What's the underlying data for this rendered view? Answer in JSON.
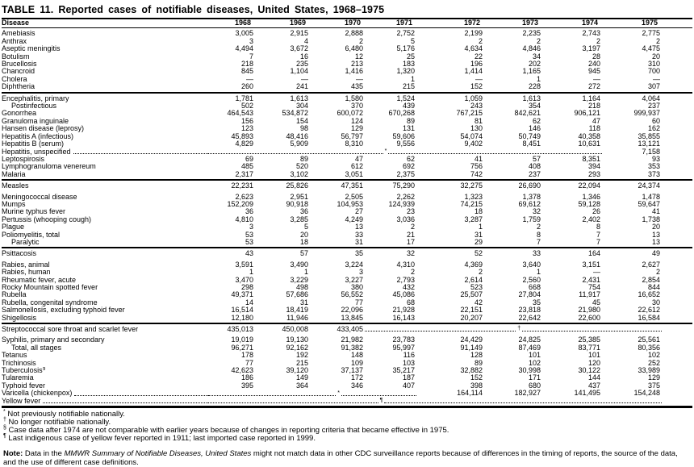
{
  "title": "TABLE 11. Reported cases of notifiable diseases, United States, 1968–1975",
  "table": {
    "columns": [
      "Disease",
      "1968",
      "1969",
      "1970",
      "1971",
      "1972",
      "1973",
      "1974",
      "1975"
    ],
    "sections": [
      {
        "rows": [
          {
            "label": "Amebiasis",
            "values": [
              "3,005",
              "2,915",
              "2,888",
              "2,752",
              "2,199",
              "2,235",
              "2,743",
              "2,775"
            ]
          },
          {
            "label": "Anthrax",
            "values": [
              "3",
              "4",
              "2",
              "5",
              "2",
              "2",
              "2",
              "2"
            ]
          },
          {
            "label": "Aseptic meningitis",
            "values": [
              "4,494",
              "3,672",
              "6,480",
              "5,176",
              "4,634",
              "4,846",
              "3,197",
              "4,475"
            ]
          },
          {
            "label": "Botulism",
            "values": [
              "7",
              "16",
              "12",
              "25",
              "22",
              "34",
              "28",
              "20"
            ]
          },
          {
            "label": "Brucellosis",
            "values": [
              "218",
              "235",
              "213",
              "183",
              "196",
              "202",
              "240",
              "310"
            ]
          },
          {
            "label": "Chancroid",
            "values": [
              "845",
              "1,104",
              "1,416",
              "1,320",
              "1,414",
              "1,165",
              "945",
              "700"
            ]
          },
          {
            "label": "Cholera",
            "values": [
              "—",
              "—",
              "—",
              "1",
              "—",
              "1",
              "—",
              "—"
            ]
          },
          {
            "label": "Diphtheria",
            "values": [
              "260",
              "241",
              "435",
              "215",
              "152",
              "228",
              "272",
              "307"
            ]
          }
        ]
      },
      {
        "rows": [
          {
            "label": "Encephalitis, primary",
            "values": [
              "1,781",
              "1,613",
              "1,580",
              "1,524",
              "1,059",
              "1,613",
              "1,164",
              "4,064"
            ]
          },
          {
            "label": "Postinfectious",
            "indent": true,
            "values": [
              "502",
              "304",
              "370",
              "439",
              "243",
              "354",
              "218",
              "237"
            ]
          },
          {
            "label": "Gonorrhea",
            "values": [
              "464,543",
              "534,872",
              "600,072",
              "670,268",
              "767,215",
              "842,621",
              "906,121",
              "999,937"
            ]
          },
          {
            "label": "Granuloma inguinale",
            "values": [
              "156",
              "154",
              "124",
              "89",
              "81",
              "62",
              "47",
              "60"
            ]
          },
          {
            "label": "Hansen disease (leprosy)",
            "values": [
              "123",
              "98",
              "129",
              "131",
              "130",
              "146",
              "118",
              "162"
            ]
          },
          {
            "label": "Hepatitis A (infectious)",
            "values": [
              "45,893",
              "48,416",
              "56,797",
              "59,606",
              "54,074",
              "50,749",
              "40,358",
              "35,855"
            ]
          },
          {
            "label": "Hepatitis B (serum)",
            "values": [
              "4,829",
              "5,909",
              "8,310",
              "9,556",
              "9,402",
              "8,451",
              "10,631",
              "13,121"
            ]
          },
          {
            "label": "Hepatitis, unspecified",
            "label_dots": true,
            "values": [
              {
                "leader": 7,
                "marker": "*",
                "pos": 45
              },
              "7,158"
            ]
          },
          {
            "label": "Leptospirosis",
            "values": [
              "69",
              "89",
              "47",
              "62",
              "41",
              "57",
              "8,351",
              "93"
            ]
          },
          {
            "label": "Lymphogranuloma venereum",
            "values": [
              "485",
              "520",
              "612",
              "692",
              "756",
              "408",
              "394",
              "353"
            ]
          },
          {
            "label": "Malaria",
            "values": [
              "2,317",
              "3,102",
              "3,051",
              "2,375",
              "742",
              "237",
              "293",
              "373"
            ]
          }
        ]
      },
      {
        "rows": [
          {
            "label": "Measles",
            "gap_after": true,
            "values": [
              "22,231",
              "25,826",
              "47,351",
              "75,290",
              "32,275",
              "26,690",
              "22,094",
              "24,374"
            ]
          },
          {
            "label": "Meningococcal disease",
            "values": [
              "2,623",
              "2,951",
              "2,505",
              "2,262",
              "1,323",
              "1,378",
              "1,346",
              "1,478"
            ]
          },
          {
            "label": "Mumps",
            "values": [
              "152,209",
              "90,918",
              "104,953",
              "124,939",
              "74,215",
              "69,612",
              "59,128",
              "59,647"
            ]
          },
          {
            "label": "Murine typhus fever",
            "values": [
              "36",
              "36",
              "27",
              "23",
              "18",
              "32",
              "26",
              "41"
            ]
          },
          {
            "label": "Pertussis (whooping cough)",
            "values": [
              "4,810",
              "3,285",
              "4,249",
              "3,036",
              "3,287",
              "1,759",
              "2,402",
              "1,738"
            ]
          },
          {
            "label": "Plague",
            "values": [
              "3",
              "5",
              "13",
              "2",
              "1",
              "2",
              "8",
              "20"
            ]
          },
          {
            "label": "Poliomyelitis, total",
            "values": [
              "53",
              "20",
              "33",
              "21",
              "31",
              "8",
              "7",
              "13"
            ]
          },
          {
            "label": "Paralytic",
            "indent": true,
            "values": [
              "53",
              "18",
              "31",
              "17",
              "29",
              "7",
              "7",
              "13"
            ]
          }
        ]
      },
      {
        "rows": [
          {
            "label": "Psittacosis",
            "gap_after": true,
            "values": [
              "43",
              "57",
              "35",
              "32",
              "52",
              "33",
              "164",
              "49"
            ]
          },
          {
            "label": "Rabies, animal",
            "values": [
              "3,591",
              "3,490",
              "3,224",
              "4,310",
              "4,369",
              "3,640",
              "3,151",
              "2,627"
            ]
          },
          {
            "label": "Rabies, human",
            "values": [
              "1",
              "1",
              "3",
              "2",
              "2",
              "1",
              "—",
              "2"
            ]
          },
          {
            "label": "Rheumatic fever, acute",
            "values": [
              "3,470",
              "3,229",
              "3,227",
              "2,793",
              "2,614",
              "2,560",
              "2,431",
              "2,854"
            ]
          },
          {
            "label": "Rocky Mountain spotted fever",
            "values": [
              "298",
              "498",
              "380",
              "432",
              "523",
              "668",
              "754",
              "844"
            ]
          },
          {
            "label": "Rubella",
            "values": [
              "49,371",
              "57,686",
              "56,552",
              "45,086",
              "25,507",
              "27,804",
              "11,917",
              "16,652"
            ]
          },
          {
            "label": "Rubella, congenital syndrome",
            "values": [
              "14",
              "31",
              "77",
              "68",
              "42",
              "35",
              "45",
              "30"
            ]
          },
          {
            "label": "Salmonellosis, excluding typhoid fever",
            "values": [
              "16,514",
              "18,419",
              "22,096",
              "21,928",
              "22,151",
              "23,818",
              "21,980",
              "22,612"
            ]
          },
          {
            "label": "Shigellosis",
            "values": [
              "12,180",
              "11,946",
              "13,845",
              "16,143",
              "20,207",
              "22,642",
              "22,600",
              "16,584"
            ]
          }
        ]
      },
      {
        "rows": [
          {
            "label": "Streptococcal sore throat and scarlet fever",
            "gap_after": true,
            "values": [
              "435,013",
              "450,008",
              "433,405",
              {
                "leader": 5,
                "marker": "†",
                "pos": 52
              }
            ]
          },
          {
            "label": "Syphilis, primary and secondary",
            "values": [
              "19,019",
              "19,130",
              "21,982",
              "23,783",
              "24,429",
              "24,825",
              "25,385",
              "25,561"
            ]
          },
          {
            "label": "Total, all stages",
            "indent": true,
            "values": [
              "96,271",
              "92,162",
              "91,382",
              "95,997",
              "91,149",
              "87,469",
              "83,771",
              "80,356"
            ]
          },
          {
            "label": "Tetanus",
            "values": [
              "178",
              "192",
              "148",
              "116",
              "128",
              "101",
              "101",
              "102"
            ]
          },
          {
            "label": "Trichinosis",
            "values": [
              "77",
              "215",
              "109",
              "103",
              "89",
              "102",
              "120",
              "252"
            ]
          },
          {
            "label": "Tuberculosis",
            "sup": "§",
            "values": [
              "42,623",
              "39,120",
              "37,137",
              "35,217",
              "32,882",
              "30,998",
              "30,122",
              "33,989"
            ]
          },
          {
            "label": "Tularemia",
            "values": [
              "186",
              "149",
              "172",
              "187",
              "152",
              "171",
              "144",
              "129"
            ]
          },
          {
            "label": "Typhoid fever",
            "values": [
              "395",
              "364",
              "346",
              "407",
              "398",
              "680",
              "437",
              "375"
            ]
          },
          {
            "label": "Varicella (chickenpox)",
            "label_dots": true,
            "values": [
              {
                "leader": 4,
                "marker": "*",
                "pos": 63
              },
              "164,114",
              "182,927",
              "141,495",
              "154,248"
            ]
          },
          {
            "label": "Yellow fever",
            "label_dots": true,
            "values": [
              {
                "leader": 8,
                "marker": "¶",
                "pos": 38
              }
            ]
          }
        ]
      }
    ]
  },
  "footnotes": [
    {
      "marker": "*",
      "text": "Not previously notifiable nationally."
    },
    {
      "marker": "†",
      "text": "No longer notifiable nationally."
    },
    {
      "marker": "§",
      "text": "Case data after 1974 are not comparable with earlier years because of changes in reporting criteria that became effective in 1975."
    },
    {
      "marker": "¶",
      "text": "Last indigenous case of yellow fever reported in 1911; last imported case reported in 1999."
    }
  ],
  "note": {
    "label": "Note:",
    "pre": " Data in the ",
    "italic": "MMWR Summary of Notifiable Diseases, United States",
    "post": " might not match data in other CDC surveillance reports because of differences in the timing of reports, the source of the data, and the use of different case definitions."
  }
}
